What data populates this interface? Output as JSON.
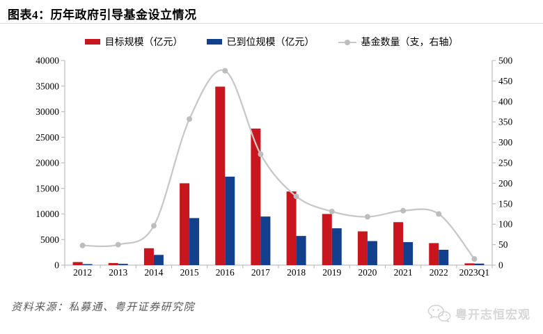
{
  "header": {
    "title": "图表4：历年政府引导基金设立情况"
  },
  "legend": [
    {
      "label": "目标规模（亿元）",
      "swatch": "bar"
    },
    {
      "label": "已到位规模（亿元）",
      "swatch": "bar"
    },
    {
      "label": "基金数量（支，右轴）",
      "swatch": "line-dot"
    }
  ],
  "chart_data": {
    "type": "bar+line",
    "title": "历年政府引导基金设立情况",
    "categories": [
      "2012",
      "2013",
      "2014",
      "2015",
      "2016",
      "2017",
      "2018",
      "2019",
      "2020",
      "2021",
      "2022",
      "2023Q1"
    ],
    "series": [
      {
        "name": "目标规模（亿元）",
        "type": "bar",
        "axis": "left",
        "color": "#c9151e",
        "values": [
          600,
          400,
          3300,
          16000,
          34900,
          26700,
          14400,
          10000,
          6600,
          8400,
          4300,
          350
        ]
      },
      {
        "name": "已到位规模（亿元）",
        "type": "bar",
        "axis": "left",
        "color": "#12408c",
        "values": [
          200,
          250,
          2000,
          9200,
          17300,
          9500,
          5700,
          7200,
          4700,
          4500,
          3000,
          300
        ]
      },
      {
        "name": "基金数量（支，右轴）",
        "type": "line",
        "axis": "right",
        "color": "#c8c8c8",
        "marker_color": "#bdbdbd",
        "values": [
          48,
          50,
          96,
          357,
          475,
          271,
          168,
          131,
          118,
          133,
          125,
          15
        ]
      }
    ],
    "left_axis": {
      "min": 0,
      "max": 40000,
      "step": 5000
    },
    "right_axis": {
      "min": 0,
      "max": 500,
      "step": 50
    },
    "axis_color": "#bfbfbf",
    "tick_label_color": "#000000",
    "grid": false,
    "legend_position": "top"
  },
  "footer": {
    "source": "资料来源：私募通、粤开证券研究院",
    "watermark": "粤开志恒宏观"
  }
}
